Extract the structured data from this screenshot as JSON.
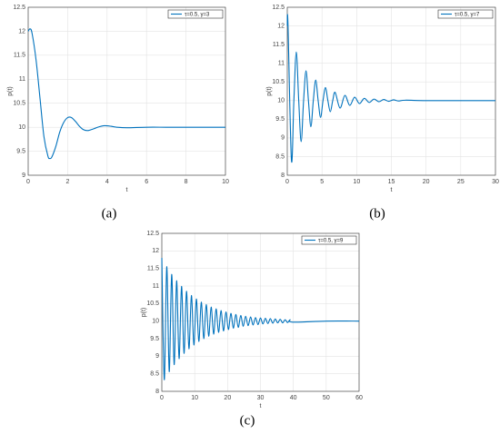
{
  "chart_data": [
    {
      "type": "line",
      "caption": "(a)",
      "x_label": "t",
      "y_label": "p(t)",
      "grid": true,
      "legend": "upper right",
      "xlim": [
        0,
        10
      ],
      "xticks": [
        0,
        2,
        4,
        6,
        8,
        10
      ],
      "ylim": [
        9,
        12.5
      ],
      "yticks": [
        9,
        9.5,
        10,
        10.5,
        11,
        11.5,
        12,
        12.5
      ],
      "x": [
        0,
        0.1,
        0.2,
        0.4,
        0.6,
        0.8,
        1,
        1.1,
        1.2,
        1.4,
        1.6,
        1.8,
        2,
        2.2,
        2.4,
        2.6,
        2.8,
        3,
        3.2,
        3.4,
        3.6,
        3.8,
        4,
        4.2,
        4.5,
        5,
        6,
        7,
        8,
        9,
        10
      ],
      "series": [
        {
          "name": "τ=0.5,  γ=3",
          "color": "#0072bd",
          "values": [
            12,
            12.05,
            11.95,
            11.4,
            10.6,
            9.8,
            9.4,
            9.35,
            9.38,
            9.6,
            9.9,
            10.1,
            10.2,
            10.2,
            10.12,
            10.02,
            9.95,
            9.93,
            9.95,
            9.98,
            10.01,
            10.03,
            10.03,
            10.02,
            10,
            9.99,
            10,
            10,
            10,
            10,
            10
          ]
        }
      ]
    },
    {
      "type": "line",
      "caption": "(b)",
      "x_label": "t",
      "y_label": "p(t)",
      "grid": true,
      "legend": "upper right",
      "xlim": [
        0,
        30
      ],
      "xticks": [
        0,
        5,
        10,
        15,
        20,
        25,
        30
      ],
      "ylim": [
        8,
        12.5
      ],
      "yticks": [
        8,
        8.5,
        9,
        9.5,
        10,
        10.5,
        11,
        11.5,
        12,
        12.5
      ],
      "x": [
        0,
        0.1,
        0.6,
        0.95,
        1.3,
        1.65,
        2,
        2.35,
        2.7,
        3.05,
        3.4,
        3.75,
        4.1,
        4.45,
        4.8,
        5.15,
        5.5,
        5.85,
        6.2,
        6.55,
        6.9,
        7.6,
        8.3,
        9,
        9.7,
        10.4,
        11.1,
        11.8,
        12.5,
        13.2,
        13.9,
        14.6,
        15.3,
        16,
        17,
        20,
        25,
        30
      ],
      "series": [
        {
          "name": "τ=0.5,  γ=7",
          "color": "#0072bd",
          "values": [
            12,
            12.05,
            8.4,
            10,
            11.3,
            10,
            8.9,
            10,
            10.8,
            10,
            9.3,
            10,
            10.55,
            10,
            9.55,
            10,
            10.35,
            10,
            9.7,
            10,
            10.22,
            9.8,
            10.14,
            9.87,
            10.09,
            9.92,
            10.06,
            9.95,
            10.04,
            9.97,
            10.03,
            9.98,
            10.02,
            9.99,
            10.01,
            10,
            10,
            10
          ]
        }
      ]
    },
    {
      "type": "line",
      "caption": "(c)",
      "x_label": "t",
      "y_label": "p(t)",
      "grid": true,
      "legend": "upper right",
      "xlim": [
        0,
        60
      ],
      "xticks": [
        0,
        10,
        20,
        30,
        40,
        50,
        60
      ],
      "ylim": [
        8,
        12.5
      ],
      "yticks": [
        8,
        8.5,
        9,
        9.5,
        10,
        10.5,
        11,
        11.5,
        12,
        12.5
      ],
      "x": [
        0,
        0.75,
        1.5,
        2.25,
        3,
        3.75,
        4.5,
        5.25,
        6,
        6.75,
        7.5,
        8.25,
        9,
        9.75,
        10.5,
        11.25,
        12,
        12.75,
        13.5,
        14.25,
        15,
        15.75,
        16.5,
        17.25,
        18,
        18.75,
        19.5,
        20.25,
        21,
        21.75,
        22.5,
        23.25,
        24,
        24.75,
        25.5,
        26.25,
        27,
        27.75,
        28.5,
        29.25,
        30,
        30.75,
        31.5,
        32.25,
        33,
        33.75,
        34.5,
        35.25,
        36,
        36.75,
        37.5,
        38.25,
        39,
        39.75,
        50,
        60
      ],
      "series": [
        {
          "name": "τ=0.5,  γ=9",
          "color": "#0072bd",
          "values": [
            11.8,
            8.33,
            11.55,
            8.56,
            11.33,
            8.76,
            11.15,
            8.93,
            10.99,
            9.08,
            10.85,
            9.21,
            10.73,
            9.32,
            10.63,
            9.42,
            10.54,
            9.5,
            10.47,
            9.57,
            10.4,
            9.63,
            10.35,
            9.68,
            10.3,
            9.72,
            10.26,
            9.76,
            10.22,
            9.8,
            10.19,
            9.82,
            10.16,
            9.85,
            10.14,
            9.87,
            10.12,
            9.89,
            10.1,
            9.9,
            10.09,
            9.92,
            10.08,
            9.93,
            10.07,
            9.94,
            10.06,
            9.95,
            10.05,
            9.95,
            10.04,
            9.96,
            10.04,
            9.97,
            10,
            10
          ]
        }
      ]
    }
  ]
}
